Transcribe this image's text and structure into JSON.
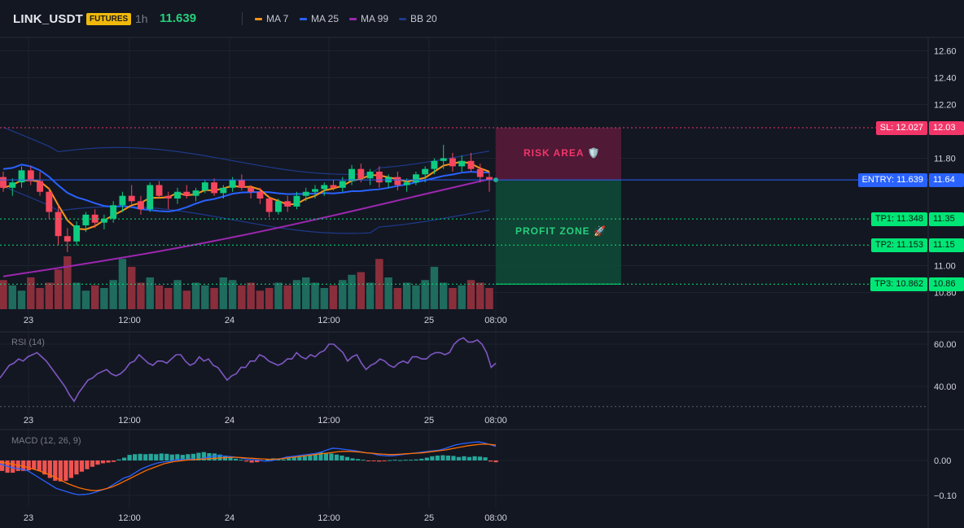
{
  "header": {
    "symbol": "LINK_USDT",
    "market_badge": "FUTURES",
    "timeframe": "1h",
    "last_price": "11.639",
    "legend": [
      {
        "label": "MA 7",
        "color": "#f7931a"
      },
      {
        "label": "MA 25",
        "color": "#2962ff"
      },
      {
        "label": "MA 99",
        "color": "#9c27b0"
      },
      {
        "label": "BB 20",
        "color": "#1e3a8a"
      }
    ]
  },
  "price_axis": {
    "ticks": [
      "12.60",
      "12.40",
      "12.20",
      "11.80",
      "11.00",
      "10.80"
    ]
  },
  "time_axis": {
    "ticks": [
      "23",
      "12:00",
      "24",
      "12:00",
      "25",
      "08:00"
    ]
  },
  "trade_levels": [
    {
      "name": "sl",
      "label": "SL: 12.027",
      "value": "12.03",
      "price": 12.027,
      "color": "#f23669"
    },
    {
      "name": "entry",
      "label": "ENTRY: 11.639",
      "value": "11.64",
      "price": 11.639,
      "color": "#2962ff"
    },
    {
      "name": "tp1",
      "label": "TP1: 11.348",
      "value": "11.35",
      "price": 11.348,
      "color": "#00e676"
    },
    {
      "name": "tp2",
      "label": "TP2: 11.153",
      "value": "11.15",
      "price": 11.153,
      "color": "#00e676"
    },
    {
      "name": "tp3",
      "label": "TP3: 10.862",
      "value": "10.86",
      "price": 10.862,
      "color": "#00e676"
    }
  ],
  "zones": {
    "risk_label": "RISK AREA 🛡️",
    "profit_label": "PROFIT ZONE 🚀"
  },
  "rsi": {
    "title": "RSI (14)",
    "ticks": [
      "60.00",
      "40.00"
    ],
    "values": [
      44,
      47,
      50,
      51,
      53,
      52,
      54,
      55,
      56,
      54,
      52,
      49,
      46,
      43,
      40,
      36,
      33,
      37,
      40,
      43,
      44,
      46,
      47,
      48,
      46,
      45,
      46,
      48,
      51,
      52,
      55,
      53,
      51,
      50,
      52,
      52,
      51,
      53,
      55,
      55,
      52,
      50,
      51,
      54,
      52,
      53,
      50,
      49,
      46,
      43,
      45,
      46,
      49,
      49,
      52,
      52,
      55,
      54,
      52,
      51,
      50,
      51,
      53,
      53,
      56,
      54,
      53,
      55,
      54,
      56,
      57,
      60,
      60,
      58,
      56,
      52,
      54,
      55,
      51,
      48,
      50,
      51,
      53,
      52,
      50,
      49,
      51,
      52,
      51,
      54,
      54,
      53,
      53,
      55,
      56,
      56,
      55,
      56,
      60,
      62,
      63,
      61,
      61,
      62,
      60,
      56,
      49,
      51
    ]
  },
  "macd": {
    "title": "MACD (12, 26, 9)",
    "ticks": [
      "0.00",
      "−0.10"
    ],
    "histogram": [
      -0.03,
      -0.035,
      -0.035,
      -0.03,
      -0.03,
      -0.028,
      -0.025,
      -0.03,
      -0.04,
      -0.05,
      -0.058,
      -0.06,
      -0.058,
      -0.05,
      -0.04,
      -0.032,
      -0.025,
      -0.018,
      -0.012,
      -0.008,
      -0.006,
      -0.004,
      0.003,
      0.008,
      0.016,
      0.018,
      0.019,
      0.018,
      0.019,
      0.018,
      0.02,
      0.019,
      0.017,
      0.018,
      0.016,
      0.018,
      0.019,
      0.022,
      0.024,
      0.021,
      0.02,
      0.017,
      0.014,
      0.01,
      0.005,
      0.002,
      -0.003,
      -0.006,
      -0.005,
      -0.001,
      0.004,
      0.006,
      0.004,
      0.003,
      0.006,
      0.009,
      0.011,
      0.012,
      0.016,
      0.02,
      0.024,
      0.022,
      0.02,
      0.017,
      0.014,
      0.01,
      0.006,
      0.004,
      0.002,
      -0.001,
      -0.002,
      -0.003,
      -0.002,
      0.001,
      0.002,
      0.001,
      0.002,
      0.002,
      0.003,
      0.005,
      0.008,
      0.012,
      0.014,
      0.015,
      0.014,
      0.013,
      0.01,
      0.012,
      0.01,
      0.012,
      0.011,
      0.009,
      -0.003,
      -0.005
    ],
    "macd_line": [
      -0.01,
      -0.015,
      -0.02,
      -0.023,
      -0.025,
      -0.03,
      -0.04,
      -0.05,
      -0.06,
      -0.07,
      -0.08,
      -0.085,
      -0.09,
      -0.095,
      -0.098,
      -0.097,
      -0.095,
      -0.09,
      -0.085,
      -0.08,
      -0.07,
      -0.06,
      -0.05,
      -0.045,
      -0.035,
      -0.025,
      -0.018,
      -0.012,
      -0.007,
      -0.004,
      -0.003,
      0.001,
      0.003,
      0.002,
      0.005,
      0.002,
      0.006,
      0.01,
      0.012,
      0.014,
      0.012,
      0.011,
      0.009,
      0.006,
      0.003,
      0.002,
      0.001,
      -0.002,
      -0.001,
      0.002,
      0.006,
      0.01,
      0.012,
      0.014,
      0.016,
      0.018,
      0.02,
      0.024,
      0.03,
      0.035,
      0.034,
      0.032,
      0.03,
      0.028,
      0.025,
      0.022,
      0.02,
      0.016,
      0.014,
      0.013,
      0.014,
      0.016,
      0.018,
      0.02,
      0.022,
      0.024,
      0.026,
      0.028,
      0.03,
      0.034,
      0.04,
      0.045,
      0.048,
      0.05,
      0.052,
      0.053,
      0.05,
      0.045,
      0.04
    ],
    "signal_line": [
      -0.005,
      -0.007,
      -0.01,
      -0.013,
      -0.016,
      -0.02,
      -0.025,
      -0.03,
      -0.036,
      -0.042,
      -0.05,
      -0.058,
      -0.066,
      -0.072,
      -0.078,
      -0.082,
      -0.085,
      -0.086,
      -0.084,
      -0.08,
      -0.075,
      -0.068,
      -0.06,
      -0.052,
      -0.044,
      -0.036,
      -0.028,
      -0.022,
      -0.016,
      -0.01,
      -0.006,
      -0.003,
      -0.001,
      0.001,
      0.002,
      0.003,
      0.004,
      0.005,
      0.006,
      0.007,
      0.008,
      0.009,
      0.009,
      0.008,
      0.007,
      0.006,
      0.005,
      0.004,
      0.003,
      0.004,
      0.005,
      0.007,
      0.009,
      0.011,
      0.013,
      0.015,
      0.017,
      0.019,
      0.021,
      0.023,
      0.025,
      0.026,
      0.026,
      0.025,
      0.024,
      0.022,
      0.021,
      0.019,
      0.018,
      0.017,
      0.017,
      0.018,
      0.019,
      0.02,
      0.021,
      0.022,
      0.024,
      0.026,
      0.028,
      0.03,
      0.033,
      0.036,
      0.039,
      0.042,
      0.044,
      0.046,
      0.047,
      0.046,
      0.044
    ]
  },
  "candles": [
    [
      11.66,
      11.7,
      11.55,
      11.58
    ],
    [
      11.58,
      11.65,
      11.52,
      11.62
    ],
    [
      11.62,
      11.74,
      11.58,
      11.71
    ],
    [
      11.71,
      11.74,
      11.6,
      11.63
    ],
    [
      11.63,
      11.7,
      11.52,
      11.55
    ],
    [
      11.55,
      11.58,
      11.35,
      11.4
    ],
    [
      11.4,
      11.45,
      11.15,
      11.22
    ],
    [
      11.22,
      11.28,
      11.1,
      11.18
    ],
    [
      11.18,
      11.33,
      11.15,
      11.3
    ],
    [
      11.3,
      11.4,
      11.25,
      11.38
    ],
    [
      11.38,
      11.42,
      11.28,
      11.32
    ],
    [
      11.32,
      11.38,
      11.27,
      11.35
    ],
    [
      11.35,
      11.48,
      11.32,
      11.45
    ],
    [
      11.45,
      11.55,
      11.4,
      11.52
    ],
    [
      11.52,
      11.6,
      11.46,
      11.48
    ],
    [
      11.48,
      11.52,
      11.38,
      11.42
    ],
    [
      11.42,
      11.62,
      11.4,
      11.6
    ],
    [
      11.6,
      11.63,
      11.5,
      11.52
    ],
    [
      11.52,
      11.55,
      11.42,
      11.5
    ],
    [
      11.5,
      11.58,
      11.46,
      11.55
    ],
    [
      11.55,
      11.6,
      11.5,
      11.52
    ],
    [
      11.52,
      11.58,
      11.48,
      11.56
    ],
    [
      11.56,
      11.64,
      11.54,
      11.62
    ],
    [
      11.62,
      11.65,
      11.52,
      11.54
    ],
    [
      11.54,
      11.6,
      11.5,
      11.58
    ],
    [
      11.58,
      11.66,
      11.55,
      11.64
    ],
    [
      11.64,
      11.68,
      11.56,
      11.58
    ],
    [
      11.58,
      11.6,
      11.5,
      11.55
    ],
    [
      11.55,
      11.58,
      11.46,
      11.5
    ],
    [
      11.5,
      11.52,
      11.36,
      11.4
    ],
    [
      11.4,
      11.5,
      11.38,
      11.48
    ],
    [
      11.48,
      11.52,
      11.4,
      11.44
    ],
    [
      11.44,
      11.55,
      11.42,
      11.52
    ],
    [
      11.52,
      11.58,
      11.48,
      11.55
    ],
    [
      11.55,
      11.6,
      11.5,
      11.57
    ],
    [
      11.57,
      11.62,
      11.52,
      11.6
    ],
    [
      11.6,
      11.64,
      11.56,
      11.58
    ],
    [
      11.58,
      11.66,
      11.55,
      11.63
    ],
    [
      11.63,
      11.75,
      11.6,
      11.72
    ],
    [
      11.72,
      11.76,
      11.62,
      11.65
    ],
    [
      11.65,
      11.72,
      11.6,
      11.7
    ],
    [
      11.7,
      11.74,
      11.58,
      11.62
    ],
    [
      11.62,
      11.68,
      11.58,
      11.66
    ],
    [
      11.66,
      11.7,
      11.56,
      11.6
    ],
    [
      11.6,
      11.65,
      11.55,
      11.62
    ],
    [
      11.62,
      11.7,
      11.6,
      11.68
    ],
    [
      11.68,
      11.74,
      11.62,
      11.72
    ],
    [
      11.72,
      11.8,
      11.68,
      11.78
    ],
    [
      11.78,
      11.9,
      11.72,
      11.8
    ],
    [
      11.8,
      11.84,
      11.7,
      11.74
    ],
    [
      11.74,
      11.82,
      11.7,
      11.78
    ],
    [
      11.78,
      11.84,
      11.7,
      11.72
    ],
    [
      11.72,
      11.76,
      11.62,
      11.66
    ],
    [
      11.66,
      11.7,
      11.55,
      11.64
    ]
  ],
  "volumes": [
    0.55,
    0.45,
    0.35,
    0.6,
    0.4,
    0.5,
    0.75,
    1.0,
    0.5,
    0.35,
    0.45,
    0.4,
    0.55,
    0.95,
    0.8,
    0.5,
    0.6,
    0.45,
    0.4,
    0.55,
    0.35,
    0.5,
    0.45,
    0.4,
    0.6,
    0.55,
    0.45,
    0.5,
    0.35,
    0.4,
    0.5,
    0.45,
    0.55,
    0.6,
    0.5,
    0.4,
    0.45,
    0.55,
    0.65,
    0.7,
    0.5,
    0.95,
    0.6,
    0.4,
    0.5,
    0.45,
    0.55,
    0.8,
    0.5,
    0.4,
    0.45,
    0.55,
    0.5,
    0.4
  ]
}
